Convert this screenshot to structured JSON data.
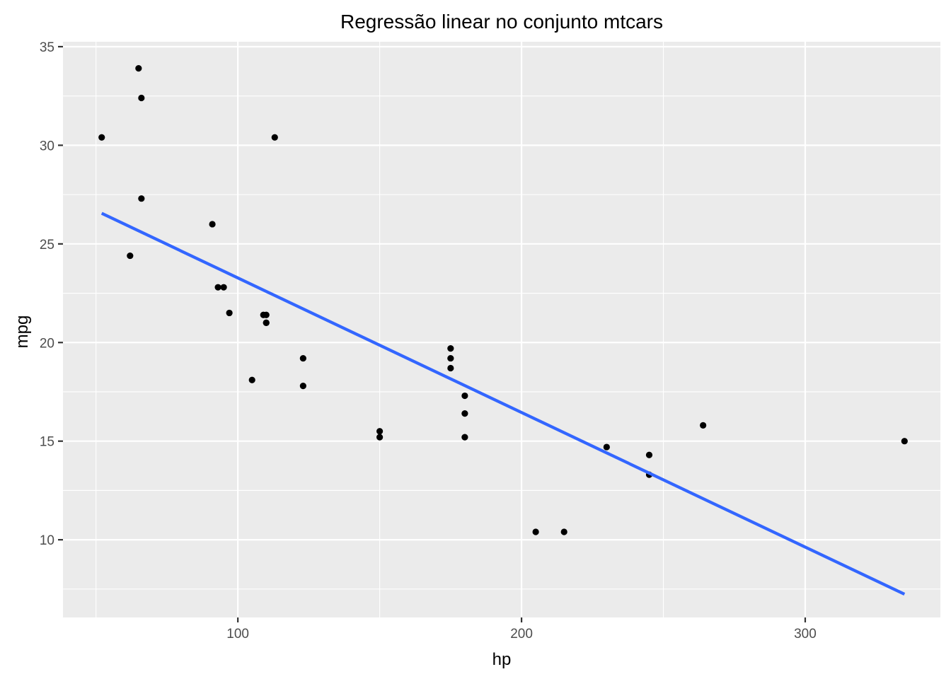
{
  "chart_data": {
    "type": "scatter",
    "title": "Regressão linear no conjunto mtcars",
    "xlabel": "hp",
    "ylabel": "mpg",
    "xlim": [
      38.35,
      347.65
    ],
    "ylim": [
      6.06,
      35.25
    ],
    "x_ticks": [
      100,
      200,
      300
    ],
    "y_ticks": [
      10,
      15,
      20,
      25,
      30,
      35
    ],
    "x_tick_labels": [
      "100",
      "200",
      "300"
    ],
    "y_tick_labels": [
      "10",
      "15",
      "20",
      "25",
      "30",
      "35"
    ],
    "grid": true,
    "legend": "none",
    "colors": {
      "panel": "#ebebeb",
      "grid": "#ffffff",
      "points": "#000000",
      "fit_line": "#3366ff"
    },
    "points": [
      {
        "x": 110,
        "y": 21.0
      },
      {
        "x": 110,
        "y": 21.0
      },
      {
        "x": 93,
        "y": 22.8
      },
      {
        "x": 110,
        "y": 21.4
      },
      {
        "x": 175,
        "y": 18.7
      },
      {
        "x": 105,
        "y": 18.1
      },
      {
        "x": 245,
        "y": 14.3
      },
      {
        "x": 62,
        "y": 24.4
      },
      {
        "x": 95,
        "y": 22.8
      },
      {
        "x": 123,
        "y": 19.2
      },
      {
        "x": 123,
        "y": 17.8
      },
      {
        "x": 180,
        "y": 16.4
      },
      {
        "x": 180,
        "y": 17.3
      },
      {
        "x": 180,
        "y": 15.2
      },
      {
        "x": 205,
        "y": 10.4
      },
      {
        "x": 215,
        "y": 10.4
      },
      {
        "x": 230,
        "y": 14.7
      },
      {
        "x": 66,
        "y": 32.4
      },
      {
        "x": 52,
        "y": 30.4
      },
      {
        "x": 65,
        "y": 33.9
      },
      {
        "x": 97,
        "y": 21.5
      },
      {
        "x": 150,
        "y": 15.5
      },
      {
        "x": 150,
        "y": 15.2
      },
      {
        "x": 245,
        "y": 13.3
      },
      {
        "x": 175,
        "y": 19.2
      },
      {
        "x": 66,
        "y": 27.3
      },
      {
        "x": 91,
        "y": 26.0
      },
      {
        "x": 113,
        "y": 30.4
      },
      {
        "x": 264,
        "y": 15.8
      },
      {
        "x": 175,
        "y": 19.7
      },
      {
        "x": 335,
        "y": 15.0
      },
      {
        "x": 109,
        "y": 21.4
      }
    ],
    "regression_line": {
      "x": [
        52,
        335
      ],
      "y": [
        26.55,
        7.24
      ]
    }
  }
}
